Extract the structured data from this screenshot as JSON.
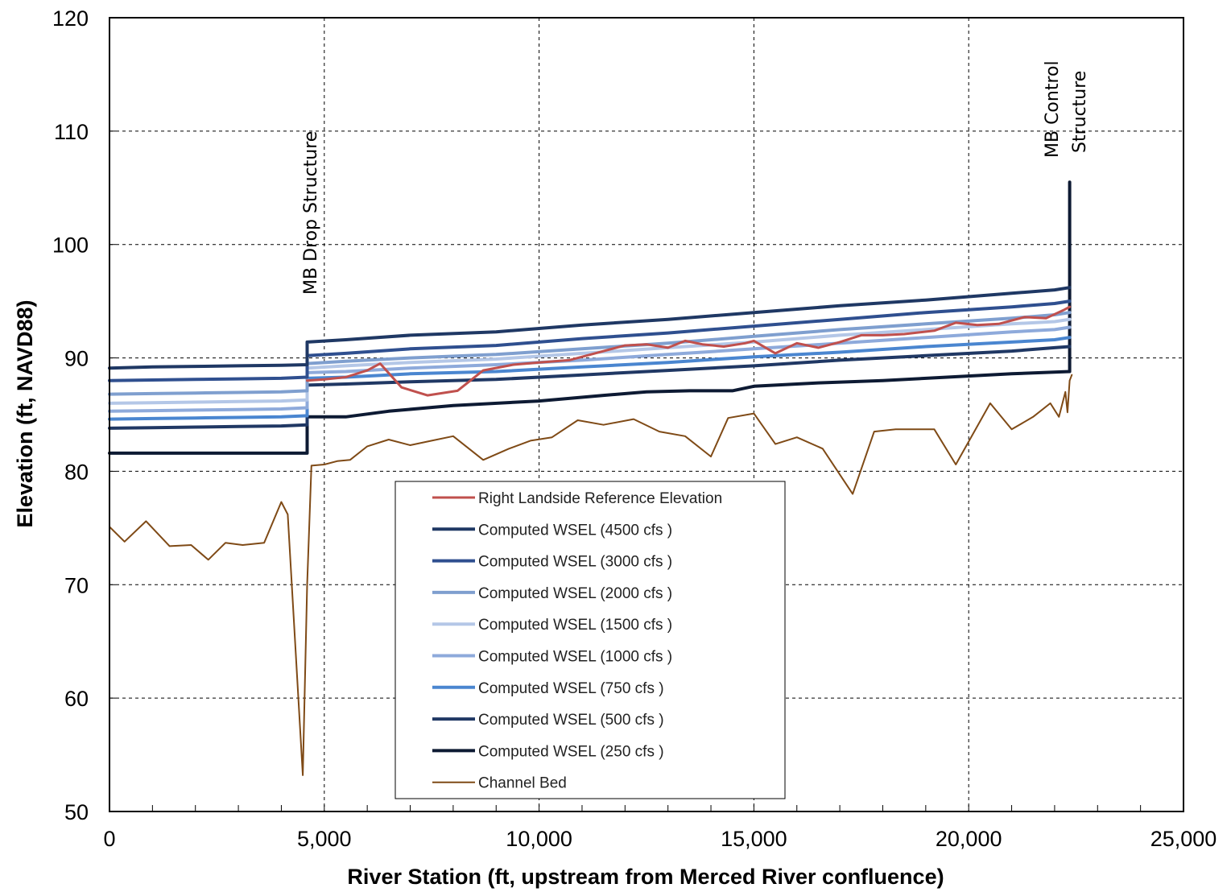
{
  "chart_data": {
    "type": "line",
    "title": "",
    "xlabel": "River Station (ft, upstream  from Merced River confluence)",
    "ylabel": "Elevation (ft,  NAVD88)",
    "xlim": [
      0,
      25000
    ],
    "ylim": [
      50,
      120
    ],
    "x_ticks": [
      0,
      5000,
      10000,
      15000,
      20000,
      25000
    ],
    "x_tick_labels": [
      "0",
      "5,000",
      "10,000",
      "15,000",
      "20,000",
      "25,000"
    ],
    "y_ticks": [
      50,
      60,
      70,
      80,
      90,
      100,
      110,
      120
    ],
    "y_tick_labels": [
      "50",
      "60",
      "70",
      "80",
      "90",
      "100",
      "110",
      "120"
    ],
    "grid": true,
    "legend_position": "center",
    "annotations": [
      {
        "text": "MB Drop Structure",
        "x": 5000
      },
      {
        "text": "MB Control",
        "x": 22500
      },
      {
        "text": "Structure",
        "x": 22500
      }
    ],
    "series": [
      {
        "name": "Right Landside Reference Elevation",
        "color": "#c0504d",
        "width": 3,
        "points": [
          [
            4600,
            88
          ],
          [
            5000,
            88.1
          ],
          [
            5500,
            88.3
          ],
          [
            6000,
            88.9
          ],
          [
            6300,
            89.5
          ],
          [
            6800,
            87.4
          ],
          [
            7400,
            86.7
          ],
          [
            8100,
            87.1
          ],
          [
            8700,
            88.9
          ],
          [
            9400,
            89.4
          ],
          [
            10000,
            89.6
          ],
          [
            10700,
            89.8
          ],
          [
            11300,
            90.4
          ],
          [
            12000,
            91.1
          ],
          [
            12500,
            91.2
          ],
          [
            13000,
            90.9
          ],
          [
            13400,
            91.5
          ],
          [
            13800,
            91.2
          ],
          [
            14300,
            91.0
          ],
          [
            14800,
            91.3
          ],
          [
            15000,
            91.5
          ],
          [
            15500,
            90.4
          ],
          [
            16000,
            91.3
          ],
          [
            16500,
            90.9
          ],
          [
            17000,
            91.4
          ],
          [
            17500,
            92.0
          ],
          [
            18000,
            92.0
          ],
          [
            18500,
            92.1
          ],
          [
            19200,
            92.4
          ],
          [
            19700,
            93.1
          ],
          [
            20200,
            92.9
          ],
          [
            20700,
            93.0
          ],
          [
            21300,
            93.6
          ],
          [
            21800,
            93.5
          ],
          [
            22200,
            94.2
          ],
          [
            22350,
            94.5
          ]
        ]
      },
      {
        "name": "Computed WSEL (4500 cfs )",
        "color": "#1f3864",
        "width": 4,
        "points": [
          [
            0,
            89.1
          ],
          [
            1000,
            89.2
          ],
          [
            2000,
            89.25
          ],
          [
            3000,
            89.3
          ],
          [
            4000,
            89.35
          ],
          [
            4600,
            89.4
          ],
          [
            4600,
            91.4
          ],
          [
            5500,
            91.6
          ],
          [
            7000,
            92.0
          ],
          [
            9000,
            92.3
          ],
          [
            11000,
            92.9
          ],
          [
            13000,
            93.4
          ],
          [
            15000,
            94.0
          ],
          [
            17000,
            94.6
          ],
          [
            19000,
            95.1
          ],
          [
            21000,
            95.7
          ],
          [
            22000,
            96.0
          ],
          [
            22350,
            96.2
          ]
        ]
      },
      {
        "name": "Computed WSEL (3000 cfs )",
        "color": "#2f4f8f",
        "width": 4,
        "points": [
          [
            0,
            88.0
          ],
          [
            1000,
            88.05
          ],
          [
            2000,
            88.1
          ],
          [
            3000,
            88.15
          ],
          [
            4000,
            88.2
          ],
          [
            4600,
            88.3
          ],
          [
            4600,
            90.2
          ],
          [
            5500,
            90.4
          ],
          [
            7000,
            90.8
          ],
          [
            9000,
            91.1
          ],
          [
            11000,
            91.7
          ],
          [
            13000,
            92.2
          ],
          [
            15000,
            92.8
          ],
          [
            17000,
            93.4
          ],
          [
            19000,
            94.0
          ],
          [
            21000,
            94.5
          ],
          [
            22000,
            94.8
          ],
          [
            22350,
            95.0
          ]
        ]
      },
      {
        "name": "Computed WSEL (2000 cfs )",
        "color": "#7f9fcf",
        "width": 4,
        "points": [
          [
            0,
            86.8
          ],
          [
            1000,
            86.85
          ],
          [
            2000,
            86.9
          ],
          [
            3000,
            86.95
          ],
          [
            4000,
            87.0
          ],
          [
            4600,
            87.1
          ],
          [
            4600,
            89.5
          ],
          [
            5500,
            89.7
          ],
          [
            7000,
            90.0
          ],
          [
            9000,
            90.3
          ],
          [
            11000,
            90.8
          ],
          [
            13000,
            91.3
          ],
          [
            15000,
            91.9
          ],
          [
            17000,
            92.5
          ],
          [
            19000,
            93.0
          ],
          [
            21000,
            93.5
          ],
          [
            22000,
            93.8
          ],
          [
            22350,
            94.0
          ]
        ]
      },
      {
        "name": "Computed WSEL (1500 cfs )",
        "color": "#b4c7e7",
        "width": 4,
        "points": [
          [
            0,
            86.0
          ],
          [
            1000,
            86.05
          ],
          [
            2000,
            86.1
          ],
          [
            3000,
            86.15
          ],
          [
            4000,
            86.2
          ],
          [
            4600,
            86.3
          ],
          [
            4600,
            89.1
          ],
          [
            5500,
            89.3
          ],
          [
            7000,
            89.6
          ],
          [
            9000,
            89.9
          ],
          [
            11000,
            90.4
          ],
          [
            13000,
            90.9
          ],
          [
            15000,
            91.4
          ],
          [
            17000,
            92.0
          ],
          [
            19000,
            92.5
          ],
          [
            21000,
            93.0
          ],
          [
            22000,
            93.2
          ],
          [
            22350,
            93.4
          ]
        ]
      },
      {
        "name": "Computed WSEL (1000 cfs )",
        "color": "#8eaadb",
        "width": 4,
        "points": [
          [
            0,
            85.3
          ],
          [
            1000,
            85.35
          ],
          [
            2000,
            85.4
          ],
          [
            3000,
            85.45
          ],
          [
            4000,
            85.5
          ],
          [
            4600,
            85.6
          ],
          [
            4600,
            88.7
          ],
          [
            5500,
            88.8
          ],
          [
            7000,
            89.1
          ],
          [
            9000,
            89.4
          ],
          [
            11000,
            89.8
          ],
          [
            13000,
            90.3
          ],
          [
            15000,
            90.8
          ],
          [
            17000,
            91.3
          ],
          [
            19000,
            91.8
          ],
          [
            21000,
            92.3
          ],
          [
            22000,
            92.5
          ],
          [
            22350,
            92.7
          ]
        ]
      },
      {
        "name": "Computed WSEL (750 cfs )",
        "color": "#4a86d0",
        "width": 4,
        "points": [
          [
            0,
            84.6
          ],
          [
            1000,
            84.65
          ],
          [
            2000,
            84.7
          ],
          [
            3000,
            84.75
          ],
          [
            4000,
            84.8
          ],
          [
            4600,
            84.9
          ],
          [
            4600,
            88.2
          ],
          [
            5500,
            88.3
          ],
          [
            7000,
            88.6
          ],
          [
            9000,
            88.8
          ],
          [
            11000,
            89.2
          ],
          [
            13000,
            89.6
          ],
          [
            15000,
            90.1
          ],
          [
            17000,
            90.5
          ],
          [
            19000,
            91.0
          ],
          [
            21000,
            91.4
          ],
          [
            22000,
            91.6
          ],
          [
            22350,
            91.8
          ]
        ]
      },
      {
        "name": "Computed WSEL (500 cfs )",
        "color": "#203864",
        "width": 4,
        "points": [
          [
            0,
            83.8
          ],
          [
            1000,
            83.85
          ],
          [
            2000,
            83.9
          ],
          [
            3000,
            83.95
          ],
          [
            4000,
            84.0
          ],
          [
            4600,
            84.1
          ],
          [
            4600,
            87.6
          ],
          [
            5500,
            87.7
          ],
          [
            7000,
            87.9
          ],
          [
            9000,
            88.1
          ],
          [
            11000,
            88.5
          ],
          [
            13000,
            88.9
          ],
          [
            15000,
            89.3
          ],
          [
            17000,
            89.8
          ],
          [
            19000,
            90.2
          ],
          [
            21000,
            90.6
          ],
          [
            22000,
            90.9
          ],
          [
            22350,
            91.0
          ]
        ]
      },
      {
        "name": "Computed WSEL (250 cfs )",
        "color": "#0d1a33",
        "width": 4,
        "points": [
          [
            0,
            81.6
          ],
          [
            1000,
            81.6
          ],
          [
            2000,
            81.6
          ],
          [
            3000,
            81.6
          ],
          [
            4000,
            81.6
          ],
          [
            4600,
            81.6
          ],
          [
            4600,
            84.8
          ],
          [
            5500,
            84.8
          ],
          [
            6500,
            85.3
          ],
          [
            8000,
            85.8
          ],
          [
            10000,
            86.2
          ],
          [
            11500,
            86.7
          ],
          [
            12500,
            87.0
          ],
          [
            13500,
            87.1
          ],
          [
            14500,
            87.1
          ],
          [
            15000,
            87.5
          ],
          [
            16500,
            87.8
          ],
          [
            18000,
            88.0
          ],
          [
            19500,
            88.3
          ],
          [
            21000,
            88.6
          ],
          [
            22350,
            88.8
          ],
          [
            22350,
            105.5
          ]
        ]
      },
      {
        "name": "Channel Bed",
        "color": "#7f4a16",
        "width": 2,
        "points": [
          [
            0,
            75.1
          ],
          [
            350,
            73.8
          ],
          [
            850,
            75.6
          ],
          [
            1400,
            73.4
          ],
          [
            1900,
            73.5
          ],
          [
            2300,
            72.2
          ],
          [
            2700,
            73.7
          ],
          [
            3100,
            73.5
          ],
          [
            3600,
            73.7
          ],
          [
            4000,
            77.3
          ],
          [
            4150,
            76.2
          ],
          [
            4500,
            53.2
          ],
          [
            4600,
            70.0
          ],
          [
            4700,
            80.5
          ],
          [
            5000,
            80.6
          ],
          [
            5300,
            80.9
          ],
          [
            5600,
            81.0
          ],
          [
            6000,
            82.2
          ],
          [
            6500,
            82.8
          ],
          [
            7000,
            82.3
          ],
          [
            7500,
            82.7
          ],
          [
            8000,
            83.1
          ],
          [
            8700,
            81.0
          ],
          [
            9300,
            82.0
          ],
          [
            9800,
            82.7
          ],
          [
            10300,
            83.0
          ],
          [
            10900,
            84.5
          ],
          [
            11500,
            84.1
          ],
          [
            12200,
            84.6
          ],
          [
            12800,
            83.5
          ],
          [
            13400,
            83.1
          ],
          [
            14000,
            81.3
          ],
          [
            14400,
            84.7
          ],
          [
            15000,
            85.1
          ],
          [
            15500,
            82.4
          ],
          [
            16000,
            83.0
          ],
          [
            16600,
            82.0
          ],
          [
            17300,
            78.0
          ],
          [
            17800,
            83.5
          ],
          [
            18300,
            83.7
          ],
          [
            18800,
            83.7
          ],
          [
            19200,
            83.7
          ],
          [
            19700,
            80.6
          ],
          [
            20500,
            86.0
          ],
          [
            21000,
            83.7
          ],
          [
            21500,
            84.8
          ],
          [
            21900,
            86.0
          ],
          [
            22100,
            84.8
          ],
          [
            22250,
            87.0
          ],
          [
            22300,
            85.2
          ],
          [
            22350,
            88.0
          ],
          [
            22400,
            88.5
          ]
        ]
      }
    ]
  }
}
